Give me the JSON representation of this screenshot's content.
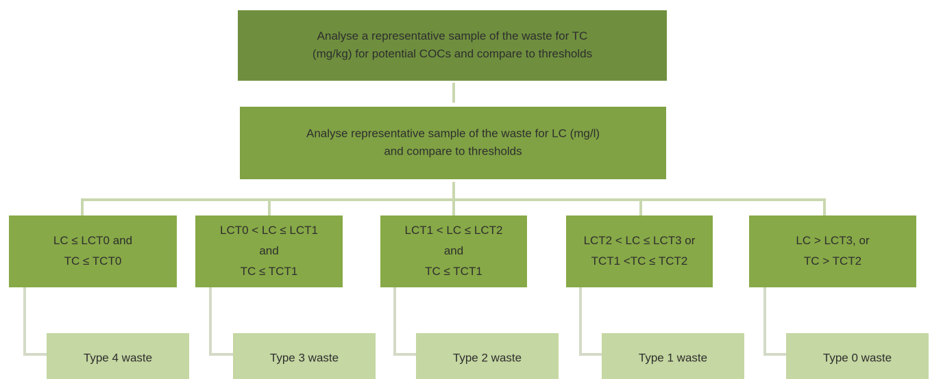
{
  "top": {
    "lines": [
      "Analyse a representative sample of the waste for TC",
      "(mg/kg) for potential COCs and compare to thresholds"
    ]
  },
  "second": {
    "lines": [
      "Analyse representative sample of the waste for LC (mg/l)",
      "and compare to thresholds"
    ]
  },
  "conditions": [
    {
      "lines": [
        "LC ≤ LCT0 and",
        "TC ≤ TCT0"
      ]
    },
    {
      "lines": [
        "LCT0 < LC ≤ LCT1",
        "and",
        "TC ≤ TCT1"
      ]
    },
    {
      "lines": [
        "LCT1 < LC ≤ LCT2",
        "and",
        "TC ≤ TCT1"
      ]
    },
    {
      "lines": [
        "LCT2 < LC ≤ LCT3 or",
        "TCT1 <TC ≤ TCT2"
      ]
    },
    {
      "lines": [
        "LC > LCT3, or",
        "TC > TCT2"
      ]
    }
  ],
  "outcomes": [
    "Type 4 waste",
    "Type 3 waste",
    "Type 2 waste",
    "Type 1 waste",
    "Type 0 waste"
  ]
}
